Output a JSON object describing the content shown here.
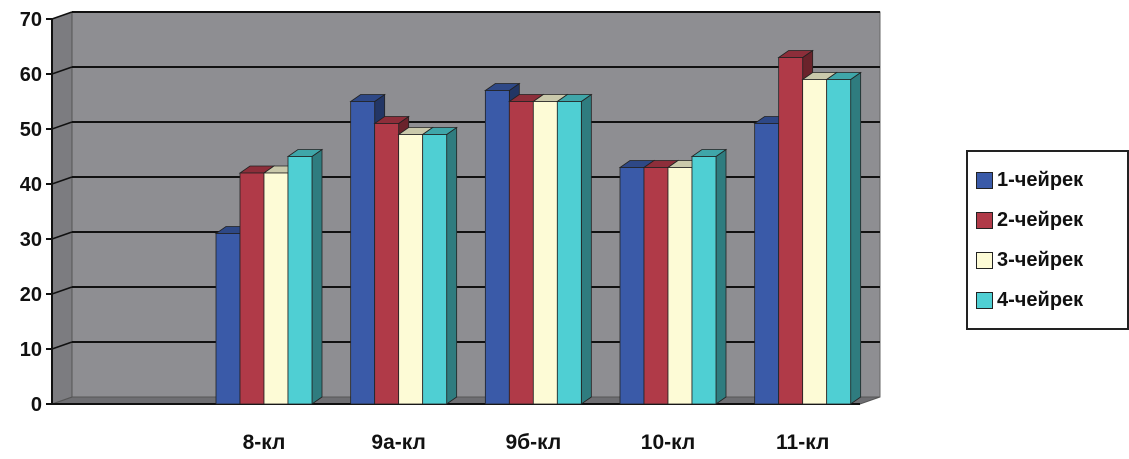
{
  "chart_data": {
    "type": "bar",
    "title": "",
    "xlabel": "",
    "ylabel": "",
    "ylim": [
      0,
      70
    ],
    "yticks": [
      0,
      10,
      20,
      30,
      40,
      50,
      60,
      70
    ],
    "grid": true,
    "legend_position": "right",
    "categories": [
      "",
      "8-кл",
      "9а-кл",
      "9б-кл",
      "10-кл",
      "11-кл"
    ],
    "series": [
      {
        "name": "1-чейрек",
        "color": "#3a5aa8",
        "values": [
          null,
          31,
          55,
          57,
          43,
          51
        ]
      },
      {
        "name": "2-чейрек",
        "color": "#b03a48",
        "values": [
          null,
          42,
          51,
          55,
          43,
          63
        ]
      },
      {
        "name": "3-чейрек",
        "color": "#fdfbd6",
        "values": [
          null,
          42,
          49,
          55,
          43,
          59
        ]
      },
      {
        "name": "4-чейрек",
        "color": "#4fcfd3",
        "values": [
          null,
          45,
          49,
          55,
          45,
          59
        ]
      }
    ],
    "plot_background": "#8e8e92"
  }
}
